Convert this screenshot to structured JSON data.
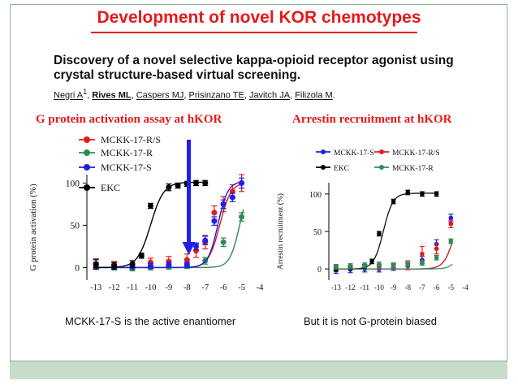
{
  "slide": {
    "title": "Development of novel KOR chemotypes",
    "paper_title": "Discovery of a novel selective kappa-opioid receptor agonist using crystal structure-based virtual screening.",
    "authors": [
      "Negri A",
      "Rives ML",
      "Caspers MJ",
      "Prisinzano TE",
      "Javitch JA",
      "Filizola M"
    ],
    "author_superscript": "1",
    "left_panel_title": "G protein activation assay at hKOR",
    "right_panel_title": "Arrestin recruitment at hKOR",
    "left_caption": "MCKK-17-S is the active enantiomer",
    "right_caption": "But it is not G-protein biased"
  },
  "colors": {
    "red": "#e41a1c",
    "green": "#2e8b57",
    "blue": "#1f1fe6",
    "black": "#000000"
  },
  "chart_data": [
    {
      "type": "scatter",
      "title": "G protein activation assay at hKOR",
      "xlabel": "",
      "ylabel": "G protein activation (%)",
      "xlim": [
        -13.5,
        -4
      ],
      "ylim": [
        -15,
        110
      ],
      "xticks": [
        "-13",
        "-12",
        "-11",
        "-10",
        "-9",
        "-8",
        "-7",
        "-6",
        "-5",
        "-4"
      ],
      "yticks": [
        "0",
        "50",
        "100"
      ],
      "legend": [
        "MCKK-17-R/S",
        "MCKK-17-R",
        "MCKK-17-S",
        "EKC"
      ],
      "legend_position": "top-left",
      "annotation": "arrow pointing down near x = -7.9",
      "series": [
        {
          "name": "MCKK-17-R/S",
          "color": "red",
          "ec50": -6.2,
          "top": 101,
          "hill": 1.4,
          "x": [
            -13,
            -12,
            -11,
            -10,
            -9,
            -8,
            -7.5,
            -7,
            -6.5,
            -6,
            -5.5,
            -5
          ],
          "y": [
            4,
            3,
            4,
            6,
            7,
            9,
            20,
            30,
            65,
            75,
            90,
            100
          ],
          "err": [
            5,
            4,
            4,
            5,
            6,
            7,
            8,
            8,
            8,
            9,
            8,
            10
          ]
        },
        {
          "name": "MCKK-17-R",
          "color": "green",
          "ec50": -5.1,
          "top": 102,
          "hill": 1.6,
          "x": [
            -13,
            -12,
            -11,
            -10,
            -9,
            -8,
            -7,
            -6,
            -5
          ],
          "y": [
            1,
            0,
            -1,
            0,
            1,
            2,
            8,
            30,
            60
          ],
          "err": [
            3,
            3,
            3,
            3,
            3,
            3,
            4,
            5,
            5
          ]
        },
        {
          "name": "MCKK-17-S",
          "color": "blue",
          "ec50": -6.3,
          "top": 102,
          "hill": 1.6,
          "x": [
            -13,
            -12,
            -11,
            -10,
            -9,
            -8,
            -7.5,
            -7,
            -6.5,
            -6,
            -5.5,
            -5
          ],
          "y": [
            2,
            1,
            1,
            2,
            3,
            3,
            25,
            32,
            55,
            75,
            83,
            100
          ],
          "err": [
            4,
            3,
            3,
            3,
            3,
            3,
            4,
            5,
            5,
            5,
            5,
            6
          ]
        },
        {
          "name": "EKC",
          "color": "black",
          "ec50": -10.0,
          "top": 101,
          "hill": 1.2,
          "x": [
            -13,
            -12,
            -11,
            -10.5,
            -10,
            -9,
            -8.5,
            -8,
            -7.5,
            -7
          ],
          "y": [
            4,
            2,
            4,
            14,
            73,
            95,
            97,
            99,
            100,
            100
          ],
          "err": [
            6,
            4,
            4,
            3,
            3,
            4,
            3,
            3,
            3,
            3
          ]
        }
      ]
    },
    {
      "type": "scatter",
      "title": "Arrestin recruitment at hKOR",
      "xlabel": "",
      "ylabel": "Arrestin recruitment (%)",
      "xlim": [
        -13.5,
        -4
      ],
      "ylim": [
        -15,
        115
      ],
      "xticks": [
        "-13",
        "-12",
        "-11",
        "-10",
        "-9",
        "-8",
        "-7",
        "-6",
        "-5",
        "-4"
      ],
      "yticks": [
        "0",
        "50",
        "100"
      ],
      "legend": [
        "MCKK-17-S",
        "MCKK-17-R/S",
        "EKC",
        "MCKK-17-R"
      ],
      "legend_position": "top",
      "series": [
        {
          "name": "MCKK-17-S",
          "color": "blue",
          "ec50": -4.7,
          "top": 100,
          "hill": 1.2,
          "x": [
            -13,
            -12,
            -11,
            -10,
            -9,
            -8,
            -7,
            -6,
            -5
          ],
          "y": [
            -2,
            -1,
            0,
            0,
            2,
            4,
            12,
            33,
            68
          ],
          "err": [
            4,
            4,
            4,
            4,
            4,
            4,
            5,
            6,
            5
          ]
        },
        {
          "name": "MCKK-17-R/S",
          "color": "red",
          "ec50": -4.7,
          "top": 100,
          "hill": 1.2,
          "x": [
            -13,
            -12,
            -11,
            -10,
            -9,
            -8,
            -7,
            -6,
            -5
          ],
          "y": [
            2,
            2,
            3,
            3,
            4,
            5,
            20,
            27,
            60
          ],
          "err": [
            3,
            3,
            3,
            3,
            3,
            6,
            10,
            7,
            5
          ]
        },
        {
          "name": "EKC",
          "color": "black",
          "ec50": -9.7,
          "top": 101,
          "hill": 1.3,
          "x": [
            -13,
            -12,
            -11,
            -10.5,
            -10,
            -9,
            -8,
            -7,
            -6
          ],
          "y": [
            0,
            2,
            3,
            10,
            47,
            90,
            102,
            100,
            100
          ],
          "err": [
            3,
            3,
            3,
            3,
            3,
            3,
            3,
            3,
            3
          ]
        },
        {
          "name": "MCKK-17-R",
          "color": "green",
          "ec50": -4.0,
          "top": 100,
          "hill": 1.3,
          "x": [
            -13,
            -12,
            -11,
            -10,
            -9,
            -8,
            -7,
            -6,
            -5
          ],
          "y": [
            3,
            4,
            5,
            6,
            5,
            6,
            8,
            15,
            37
          ],
          "err": [
            3,
            3,
            3,
            3,
            3,
            3,
            3,
            3,
            3
          ]
        }
      ]
    }
  ]
}
